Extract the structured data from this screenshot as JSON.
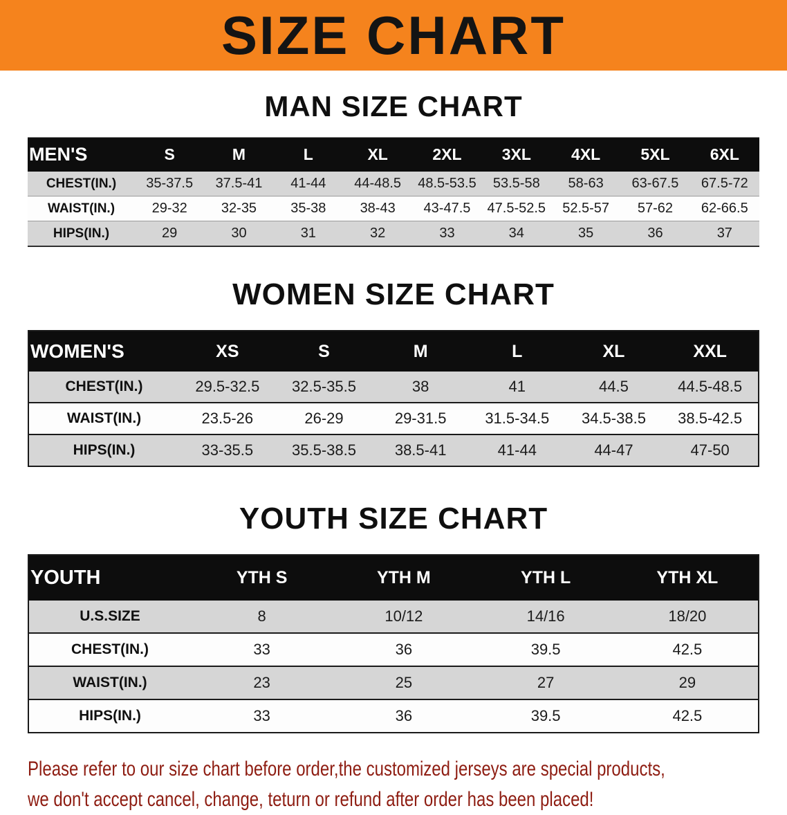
{
  "banner": {
    "title": "SIZE CHART",
    "bg_color": "#F5831D",
    "text_color": "#141414"
  },
  "sections": [
    {
      "heading": "MAN SIZE CHART",
      "table": {
        "header": [
          "MEN'S",
          "S",
          "M",
          "L",
          "XL",
          "2XL",
          "3XL",
          "4XL",
          "5XL",
          "6XL"
        ],
        "rows": [
          [
            "CHEST(IN.)",
            "35-37.5",
            "37.5-41",
            "41-44",
            "44-48.5",
            "48.5-53.5",
            "53.5-58",
            "58-63",
            "63-67.5",
            "67.5-72"
          ],
          [
            "WAIST(IN.)",
            "29-32",
            "32-35",
            "35-38",
            "38-43",
            "43-47.5",
            "47.5-52.5",
            "52.5-57",
            "57-62",
            "62-66.5"
          ],
          [
            "HIPS(IN.)",
            "29",
            "30",
            "31",
            "32",
            "33",
            "34",
            "35",
            "36",
            "37"
          ]
        ]
      }
    },
    {
      "heading": "WOMEN SIZE CHART",
      "table": {
        "header": [
          "WOMEN'S",
          "XS",
          "S",
          "M",
          "L",
          "XL",
          "XXL"
        ],
        "rows": [
          [
            "CHEST(IN.)",
            "29.5-32.5",
            "32.5-35.5",
            "38",
            "41",
            "44.5",
            "44.5-48.5"
          ],
          [
            "WAIST(IN.)",
            "23.5-26",
            "26-29",
            "29-31.5",
            "31.5-34.5",
            "34.5-38.5",
            "38.5-42.5"
          ],
          [
            "HIPS(IN.)",
            "33-35.5",
            "35.5-38.5",
            "38.5-41",
            "41-44",
            "44-47",
            "47-50"
          ]
        ]
      }
    },
    {
      "heading": "YOUTH SIZE CHART",
      "table": {
        "header": [
          "YOUTH",
          "YTH S",
          "YTH M",
          "YTH L",
          "YTH XL"
        ],
        "rows": [
          [
            "U.S.SIZE",
            "8",
            "10/12",
            "14/16",
            "18/20"
          ],
          [
            "CHEST(IN.)",
            "33",
            "36",
            "39.5",
            "42.5"
          ],
          [
            "WAIST(IN.)",
            "23",
            "25",
            "27",
            "29"
          ],
          [
            "HIPS(IN.)",
            "33",
            "36",
            "39.5",
            "42.5"
          ]
        ]
      }
    }
  ],
  "footer": {
    "lines": [
      "Please refer to our size chart before order,the customized jerseys are special products,",
      "we don't accept cancel, change, teturn or refund after order has been placed!"
    ],
    "text_color": "#8E1D12"
  },
  "colors": {
    "table_header_bg": "#0D0D0D",
    "stripe_gray": "#D6D6D6",
    "stripe_white": "#FDFDFD"
  }
}
